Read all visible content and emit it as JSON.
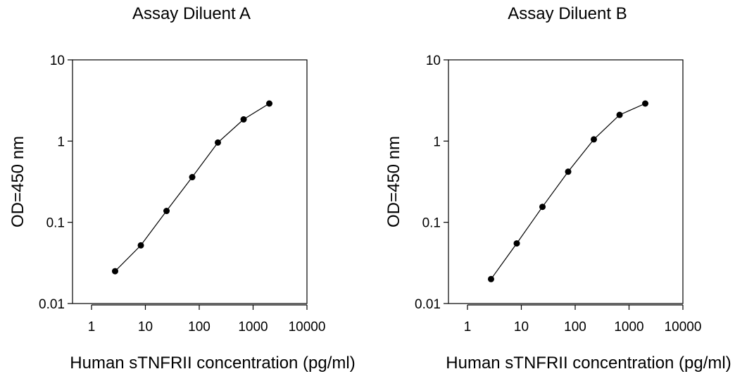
{
  "chart_data": [
    {
      "type": "line",
      "title": "Assay Diluent A",
      "xlabel": "Human sTNFRII concentration (pg/ml)",
      "ylabel": "OD=450 nm",
      "xscale": "log",
      "yscale": "log",
      "xlim": [
        1,
        10000
      ],
      "ylim": [
        0.01,
        10
      ],
      "xticks": [
        "1",
        "10",
        "100",
        "1000",
        "10000"
      ],
      "yticks": [
        "0.01",
        "0.1",
        "1",
        "10"
      ],
      "grid": false,
      "series": [
        {
          "x": [
            2.74,
            8.23,
            24.7,
            74.1,
            222,
            667,
            2000
          ],
          "y": [
            0.025,
            0.052,
            0.138,
            0.36,
            0.96,
            1.85,
            2.9
          ]
        }
      ]
    },
    {
      "type": "line",
      "title": "Assay Diluent B",
      "xlabel": "Human sTNFRII concentration (pg/ml)",
      "ylabel": "OD=450 nm",
      "xscale": "log",
      "yscale": "log",
      "xlim": [
        1,
        10000
      ],
      "ylim": [
        0.01,
        10
      ],
      "xticks": [
        "1",
        "10",
        "100",
        "1000",
        "10000"
      ],
      "yticks": [
        "0.01",
        "0.1",
        "1",
        "10"
      ],
      "grid": false,
      "series": [
        {
          "x": [
            2.74,
            8.23,
            24.7,
            74.1,
            222,
            667,
            2000
          ],
          "y": [
            0.02,
            0.055,
            0.155,
            0.42,
            1.05,
            2.1,
            2.9
          ]
        }
      ]
    }
  ]
}
